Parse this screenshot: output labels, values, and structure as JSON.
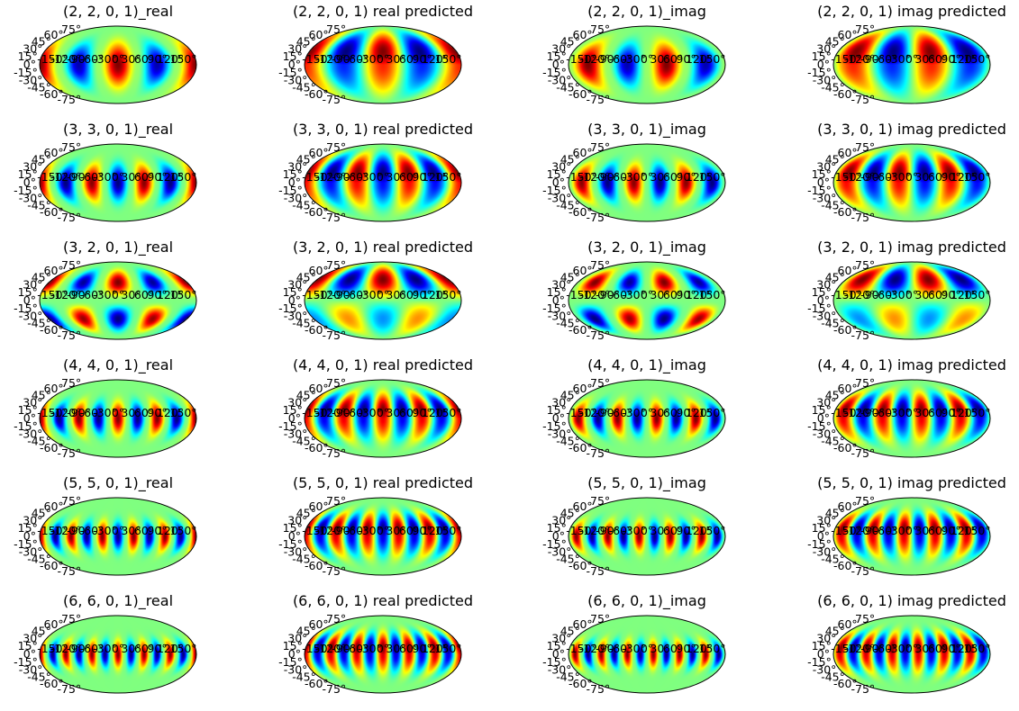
{
  "figure": {
    "colormap": "jet",
    "projection": "Mollweide"
  },
  "chart_data": {
    "type": "heatmap",
    "projection": "mollweide",
    "colormap": "jet",
    "lat_ticks": [
      "-75°",
      "-60°",
      "-45°",
      "-30°",
      "-15°",
      "0°",
      "15°",
      "30°",
      "45°",
      "60°",
      "75°"
    ],
    "lon_ticks": [
      "-150°",
      "-120°",
      "-90°",
      "-60°",
      "-30°",
      "0°",
      "30°",
      "60°",
      "90°",
      "120°",
      "150°"
    ],
    "panels": [
      {
        "title": "(2, 2, 0, 1)_real",
        "l": 2,
        "m": 2,
        "part": "real",
        "predicted": false
      },
      {
        "title": "(2, 2, 0, 1) real predicted",
        "l": 2,
        "m": 2,
        "part": "real",
        "predicted": true
      },
      {
        "title": "(2, 2, 0, 1)_imag",
        "l": 2,
        "m": 2,
        "part": "imag",
        "predicted": false
      },
      {
        "title": "(2, 2, 0, 1) imag predicted",
        "l": 2,
        "m": 2,
        "part": "imag",
        "predicted": true
      },
      {
        "title": "(3, 3, 0, 1)_real",
        "l": 3,
        "m": 3,
        "part": "real",
        "predicted": false
      },
      {
        "title": "(3, 3, 0, 1) real predicted",
        "l": 3,
        "m": 3,
        "part": "real",
        "predicted": true
      },
      {
        "title": "(3, 3, 0, 1)_imag",
        "l": 3,
        "m": 3,
        "part": "imag",
        "predicted": false
      },
      {
        "title": "(3, 3, 0, 1) imag predicted",
        "l": 3,
        "m": 3,
        "part": "imag",
        "predicted": true
      },
      {
        "title": "(3, 2, 0, 1)_real",
        "l": 3,
        "m": 2,
        "part": "real",
        "predicted": false
      },
      {
        "title": "(3, 2, 0, 1) real predicted",
        "l": 3,
        "m": 2,
        "part": "real",
        "predicted": true
      },
      {
        "title": "(3, 2, 0, 1)_imag",
        "l": 3,
        "m": 2,
        "part": "imag",
        "predicted": false
      },
      {
        "title": "(3, 2, 0, 1) imag predicted",
        "l": 3,
        "m": 2,
        "part": "imag",
        "predicted": true
      },
      {
        "title": "(4, 4, 0, 1)_real",
        "l": 4,
        "m": 4,
        "part": "real",
        "predicted": false
      },
      {
        "title": "(4, 4, 0, 1) real predicted",
        "l": 4,
        "m": 4,
        "part": "real",
        "predicted": true
      },
      {
        "title": "(4, 4, 0, 1)_imag",
        "l": 4,
        "m": 4,
        "part": "imag",
        "predicted": false
      },
      {
        "title": "(4, 4, 0, 1) imag predicted",
        "l": 4,
        "m": 4,
        "part": "imag",
        "predicted": true
      },
      {
        "title": "(5, 5, 0, 1)_real",
        "l": 5,
        "m": 5,
        "part": "real",
        "predicted": false
      },
      {
        "title": "(5, 5, 0, 1) real predicted",
        "l": 5,
        "m": 5,
        "part": "real",
        "predicted": true
      },
      {
        "title": "(5, 5, 0, 1)_imag",
        "l": 5,
        "m": 5,
        "part": "imag",
        "predicted": false
      },
      {
        "title": "(5, 5, 0, 1) imag predicted",
        "l": 5,
        "m": 5,
        "part": "imag",
        "predicted": true
      },
      {
        "title": "(6, 6, 0, 1)_real",
        "l": 6,
        "m": 6,
        "part": "real",
        "predicted": false
      },
      {
        "title": "(6, 6, 0, 1) real predicted",
        "l": 6,
        "m": 6,
        "part": "real",
        "predicted": true
      },
      {
        "title": "(6, 6, 0, 1)_imag",
        "l": 6,
        "m": 6,
        "part": "imag",
        "predicted": false
      },
      {
        "title": "(6, 6, 0, 1) imag predicted",
        "l": 6,
        "m": 6,
        "part": "imag",
        "predicted": true
      }
    ]
  }
}
